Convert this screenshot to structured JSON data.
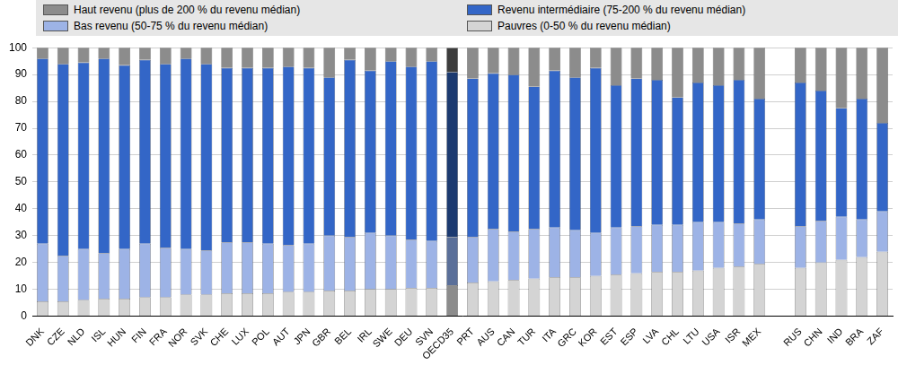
{
  "chart_data": {
    "type": "bar",
    "stacked": true,
    "grid": true,
    "legend": "top",
    "categories": [
      "DNK",
      "CZE",
      "NLD",
      "ISL",
      "HUN",
      "FIN",
      "FRA",
      "NOR",
      "SVK",
      "CHE",
      "LUX",
      "POL",
      "AUT",
      "JPN",
      "GBR",
      "BEL",
      "IRL",
      "SWE",
      "DEU",
      "SVN",
      "OECD35",
      "PRT",
      "AUS",
      "CAN",
      "TUR",
      "ITA",
      "GRC",
      "KOR",
      "EST",
      "ESP",
      "LVA",
      "CHL",
      "LTU",
      "USA",
      "ISR",
      "MEX",
      null,
      "RUS",
      "CHN",
      "IND",
      "BRA",
      "ZAF"
    ],
    "ylim": [
      0,
      100
    ],
    "yticks": [
      0,
      10,
      20,
      30,
      40,
      50,
      60,
      70,
      80,
      90,
      100
    ],
    "series": [
      {
        "name": "Pauvres (0-50 % du revenu médian)",
        "color": "#d4d4d4",
        "values": [
          5.5,
          5.5,
          6,
          6.5,
          6.5,
          7,
          7,
          8,
          8,
          8.5,
          8.5,
          8.5,
          9,
          9,
          9.5,
          9.5,
          10,
          10,
          10.5,
          10.5,
          11.5,
          12.5,
          13,
          13.5,
          14,
          14.5,
          14.5,
          15,
          15.5,
          16,
          16.5,
          16.5,
          17,
          18,
          18.5,
          19.5,
          null,
          18,
          20,
          21,
          22,
          24
        ],
        "colors": [
          "#d4d4d4",
          "#d4d4d4",
          "#d4d4d4",
          "#d4d4d4",
          "#d4d4d4",
          "#d4d4d4",
          "#d4d4d4",
          "#d4d4d4",
          "#d4d4d4",
          "#d4d4d4",
          "#d4d4d4",
          "#d4d4d4",
          "#d4d4d4",
          "#d4d4d4",
          "#d4d4d4",
          "#d4d4d4",
          "#d4d4d4",
          "#d4d4d4",
          "#d4d4d4",
          "#d4d4d4",
          "#8c8c8c",
          "#d4d4d4",
          "#d4d4d4",
          "#d4d4d4",
          "#d4d4d4",
          "#d4d4d4",
          "#d4d4d4",
          "#d4d4d4",
          "#d4d4d4",
          "#d4d4d4",
          "#d4d4d4",
          "#d4d4d4",
          "#d4d4d4",
          "#d4d4d4",
          "#d4d4d4",
          "#d4d4d4",
          "#d4d4d4",
          "#d4d4d4",
          "#d4d4d4",
          "#d4d4d4",
          "#d4d4d4",
          "#d4d4d4"
        ]
      },
      {
        "name": "Bas revenu (50-75 % du revenu médian)",
        "color": "#9db3e6",
        "values": [
          21.5,
          17,
          19,
          17,
          18.5,
          20,
          18.5,
          17,
          16.5,
          19,
          19,
          18.5,
          17.5,
          18,
          20.5,
          20,
          21,
          20,
          18,
          17.5,
          18,
          17,
          19.5,
          18,
          18.5,
          18.5,
          17.5,
          16,
          17.5,
          17.5,
          17.5,
          17.5,
          18,
          17,
          16,
          16.5,
          null,
          15.5,
          15.5,
          16,
          14,
          15
        ],
        "colors": [
          "#9db3e6",
          "#9db3e6",
          "#9db3e6",
          "#9db3e6",
          "#9db3e6",
          "#9db3e6",
          "#9db3e6",
          "#9db3e6",
          "#9db3e6",
          "#9db3e6",
          "#9db3e6",
          "#9db3e6",
          "#9db3e6",
          "#9db3e6",
          "#9db3e6",
          "#9db3e6",
          "#9db3e6",
          "#9db3e6",
          "#9db3e6",
          "#9db3e6",
          "#5a6f99",
          "#9db3e6",
          "#9db3e6",
          "#9db3e6",
          "#9db3e6",
          "#9db3e6",
          "#9db3e6",
          "#9db3e6",
          "#9db3e6",
          "#9db3e6",
          "#9db3e6",
          "#9db3e6",
          "#9db3e6",
          "#9db3e6",
          "#9db3e6",
          "#9db3e6",
          "#9db3e6",
          "#9db3e6",
          "#9db3e6",
          "#9db3e6",
          "#9db3e6",
          "#9db3e6"
        ]
      },
      {
        "name": "Revenu intermédiaire (75-200 % du revenu médian)",
        "color": "#3366c7",
        "values": [
          69,
          71.5,
          69.5,
          72.5,
          68.5,
          68.5,
          68.5,
          71,
          69.5,
          65,
          65,
          65.5,
          66.5,
          65.5,
          59,
          66,
          60.5,
          65,
          64.5,
          67,
          61.5,
          59,
          58,
          58.5,
          53,
          58.5,
          57,
          61.5,
          53,
          55,
          54,
          47.5,
          52,
          51,
          53.5,
          45,
          null,
          53.5,
          48.5,
          40.5,
          45,
          33
        ],
        "colors": [
          "#3366c7",
          "#3366c7",
          "#3366c7",
          "#3366c7",
          "#3366c7",
          "#3366c7",
          "#3366c7",
          "#3366c7",
          "#3366c7",
          "#3366c7",
          "#3366c7",
          "#3366c7",
          "#3366c7",
          "#3366c7",
          "#3366c7",
          "#3366c7",
          "#3366c7",
          "#3366c7",
          "#3366c7",
          "#3366c7",
          "#1c3a70",
          "#3366c7",
          "#3366c7",
          "#3366c7",
          "#3366c7",
          "#3366c7",
          "#3366c7",
          "#3366c7",
          "#3366c7",
          "#3366c7",
          "#3366c7",
          "#3366c7",
          "#3366c7",
          "#3366c7",
          "#3366c7",
          "#3366c7",
          "#3366c7",
          "#3366c7",
          "#3366c7",
          "#3366c7",
          "#3366c7",
          "#3366c7"
        ]
      },
      {
        "name": "Haut revenu (plus de 200 % du revenu médian)",
        "color": "#8c8c8c",
        "values": [
          4,
          6,
          5.5,
          4,
          6.5,
          4.5,
          6,
          4,
          6,
          7.5,
          7.5,
          7.5,
          7,
          7.5,
          11,
          4.5,
          8.5,
          5,
          7,
          5,
          9,
          11.5,
          9.5,
          10,
          14.5,
          8.5,
          11,
          7.5,
          14,
          11.5,
          12,
          18.5,
          13,
          14,
          12,
          19,
          null,
          13,
          16,
          22.5,
          19,
          28
        ],
        "colors": [
          "#8c8c8c",
          "#8c8c8c",
          "#8c8c8c",
          "#8c8c8c",
          "#8c8c8c",
          "#8c8c8c",
          "#8c8c8c",
          "#8c8c8c",
          "#8c8c8c",
          "#8c8c8c",
          "#8c8c8c",
          "#8c8c8c",
          "#8c8c8c",
          "#8c8c8c",
          "#8c8c8c",
          "#8c8c8c",
          "#8c8c8c",
          "#8c8c8c",
          "#8c8c8c",
          "#8c8c8c",
          "#3d3d3d",
          "#8c8c8c",
          "#8c8c8c",
          "#8c8c8c",
          "#8c8c8c",
          "#8c8c8c",
          "#8c8c8c",
          "#8c8c8c",
          "#8c8c8c",
          "#8c8c8c",
          "#8c8c8c",
          "#8c8c8c",
          "#8c8c8c",
          "#8c8c8c",
          "#8c8c8c",
          "#8c8c8c",
          "#8c8c8c",
          "#8c8c8c",
          "#8c8c8c",
          "#8c8c8c",
          "#8c8c8c",
          "#8c8c8c"
        ]
      }
    ]
  }
}
